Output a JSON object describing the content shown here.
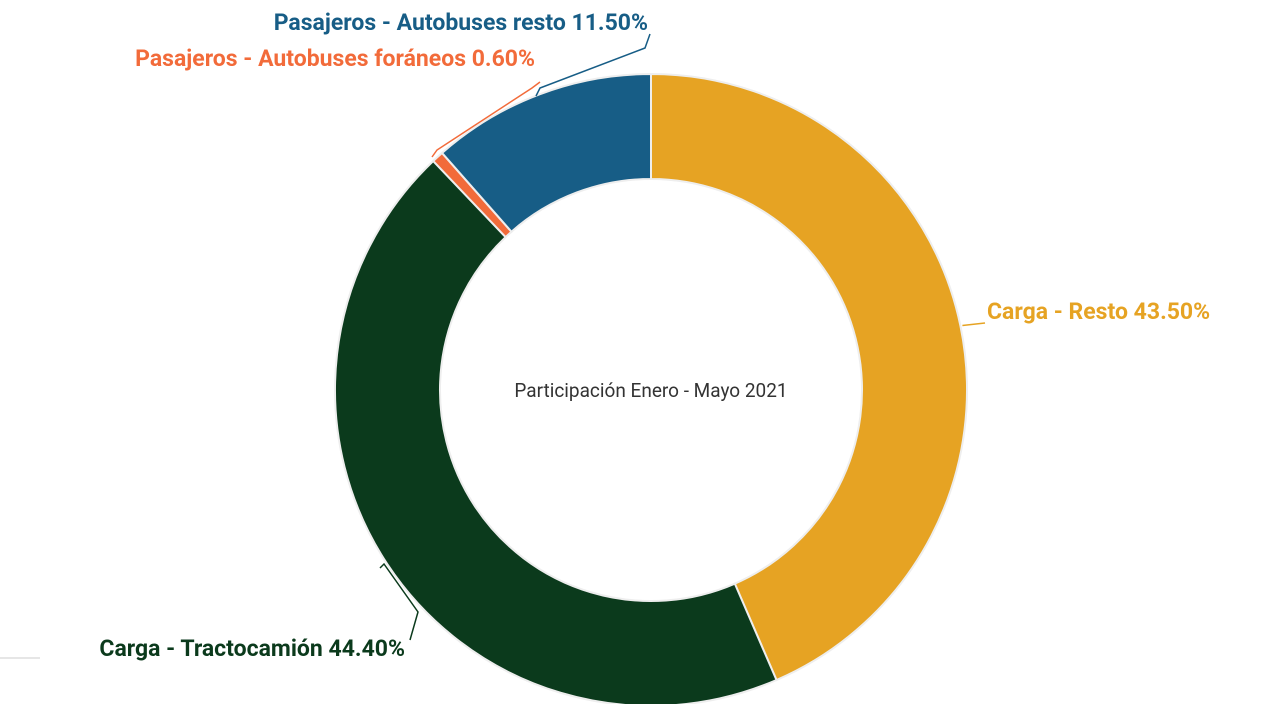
{
  "chart_data": {
    "type": "donut",
    "center_text": "Participación Enero - Mayo 2021",
    "categories": [
      "Carga - Resto",
      "Carga - Tractocamión",
      "Pasajeros - Autobuses foráneos",
      "Pasajeros - Autobuses resto"
    ],
    "values": [
      43.5,
      44.4,
      0.6,
      11.5
    ],
    "value_labels": [
      "43.50%",
      "44.40%",
      "0.60%",
      "11.50%"
    ],
    "colors": [
      "#e6a323",
      "#0b3a1c",
      "#f26b3a",
      "#175d86"
    ]
  }
}
